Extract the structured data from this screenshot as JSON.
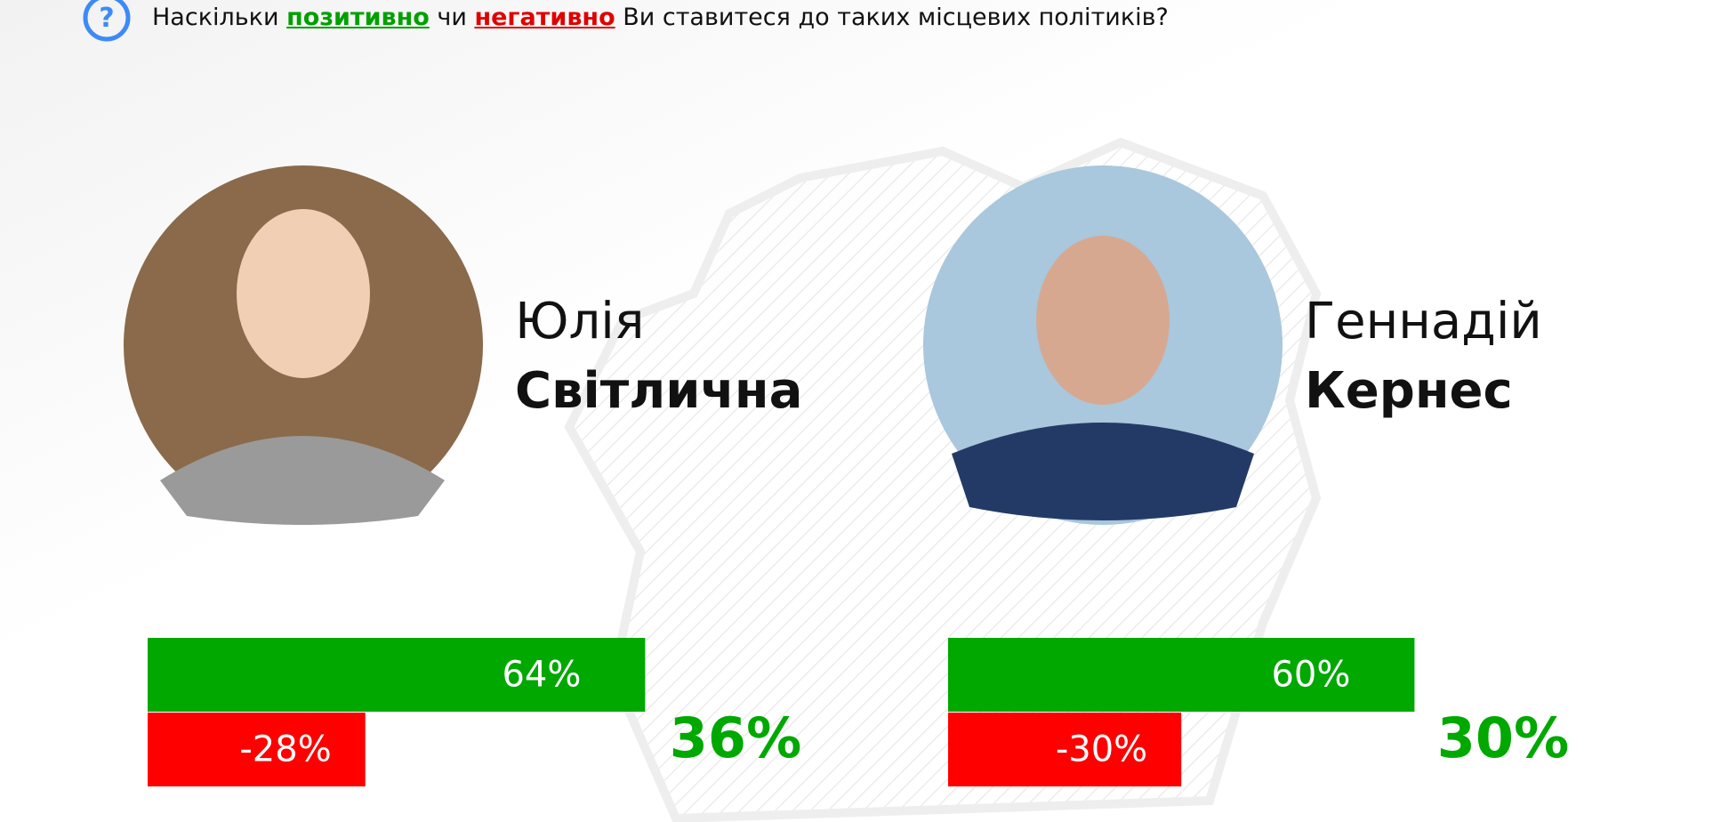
{
  "question": {
    "parts": [
      "Наскільки ",
      "позитивно",
      " чи ",
      "негативно",
      " Ви ставитеся до таких місцевих політиків?"
    ]
  },
  "chart_data": [
    {
      "type": "bar",
      "orientation": "horizontal",
      "first_name": "Юлія",
      "last_name": "Світлична",
      "categories": [
        null,
        null
      ],
      "values": [
        64,
        -28
      ],
      "value_labels": [
        "64%",
        "-28%"
      ],
      "colors": [
        "#00a800",
        "#ff0000"
      ],
      "net": 36,
      "net_label": "36%"
    },
    {
      "type": "bar",
      "orientation": "horizontal",
      "first_name": "Геннадій",
      "last_name": "Кернес",
      "categories": [
        null,
        null
      ],
      "values": [
        60,
        -30
      ],
      "value_labels": [
        "60%",
        "-30%"
      ],
      "colors": [
        "#00a800",
        "#ff0000"
      ],
      "net": 30,
      "net_label": "30%"
    }
  ]
}
